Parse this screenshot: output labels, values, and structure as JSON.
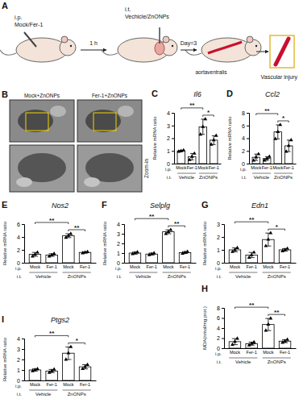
{
  "schematic": {
    "panel": "A",
    "texts": {
      "ip": "i.p.",
      "ip_agent": "Mock/Fer-1",
      "interval": "1 h",
      "it": "i.t.",
      "it_agent": "Vechicle/ZnONPs",
      "day": "Day=3",
      "vessel": "aortaventralis",
      "outcome": "Vascular injury"
    }
  },
  "images": {
    "panel": "B",
    "labels": [
      "Mock+ZnONPs",
      "Fer-1+ZnONPs"
    ],
    "zoom": "Zoom-in"
  },
  "chart_data": [
    {
      "type": "bar",
      "panel": "C",
      "title": "Il6",
      "y_label": "Relative mRNA ratio",
      "categories": [
        "Mock",
        "Fer-1",
        "Mock",
        "Fer-1"
      ],
      "groups": [
        "Vehicle",
        "ZnONPs"
      ],
      "row_labels": [
        "i.p.",
        "i.t."
      ],
      "values": [
        1.0,
        0.55,
        2.9,
        1.85
      ],
      "errors": [
        0.05,
        0.25,
        0.6,
        0.35
      ],
      "points": [
        [
          0.95,
          1.0,
          1.05
        ],
        [
          0.3,
          0.55,
          0.8
        ],
        [
          2.3,
          2.9,
          3.5
        ],
        [
          1.5,
          1.85,
          2.2
        ]
      ],
      "significance": [
        {
          "from": 0,
          "to": 2,
          "label": "**"
        },
        {
          "from": 2,
          "to": 3,
          "label": "*"
        }
      ],
      "ylim": [
        0,
        4
      ],
      "yticks": [
        0,
        1,
        2,
        3,
        4
      ],
      "color": "#ffffff",
      "marker": "triangle",
      "grid": false
    },
    {
      "type": "bar",
      "panel": "D",
      "title": "Ccl2",
      "y_label": "Relative mRNA ratio",
      "categories": [
        "Mock",
        "Fer-1",
        "Mock",
        "Fer-1"
      ],
      "groups": [
        "Vehicle",
        "ZnONPs"
      ],
      "row_labels": [
        "i.p.",
        "i.t."
      ],
      "values": [
        1.0,
        0.8,
        5.0,
        2.8
      ],
      "errors": [
        0.5,
        0.3,
        1.1,
        0.9
      ],
      "points": [
        [
          0.5,
          1.0,
          1.5
        ],
        [
          0.5,
          0.8,
          1.1
        ],
        [
          3.9,
          5.0,
          6.1
        ],
        [
          1.9,
          2.8,
          3.7
        ]
      ],
      "significance": [
        {
          "from": 0,
          "to": 2,
          "label": "**"
        },
        {
          "from": 2,
          "to": 3,
          "label": "*"
        }
      ],
      "ylim": [
        0,
        8
      ],
      "yticks": [
        0,
        2,
        4,
        6,
        8
      ],
      "color": "#ffffff",
      "marker": "triangle",
      "grid": false
    },
    {
      "type": "bar",
      "panel": "E",
      "title": "Nos2",
      "y_label": "Relative mRNA ratio",
      "categories": [
        "Mock",
        "Fer-1",
        "Mock",
        "Fer-1"
      ],
      "groups": [
        "Vehicle",
        "ZnONPs"
      ],
      "row_labels": [
        "i.p.",
        "i.t."
      ],
      "values": [
        1.3,
        1.2,
        4.2,
        1.6
      ],
      "errors": [
        0.3,
        0.2,
        0.3,
        0.1
      ],
      "points": [
        [
          1.0,
          1.3,
          1.6
        ],
        [
          1.0,
          1.2,
          1.4
        ],
        [
          3.9,
          4.2,
          4.5
        ],
        [
          1.5,
          1.6,
          1.7
        ]
      ],
      "significance": [
        {
          "from": 0,
          "to": 2,
          "label": "**"
        },
        {
          "from": 2,
          "to": 3,
          "label": "**"
        }
      ],
      "ylim": [
        0,
        6
      ],
      "yticks": [
        0,
        2,
        4,
        6
      ],
      "color": "#ffffff",
      "marker": "triangle",
      "grid": false
    },
    {
      "type": "bar",
      "panel": "F",
      "title": "Selplg",
      "y_label": "Relative mRNA ratio",
      "categories": [
        "Mock",
        "Fer-1",
        "Mock",
        "Fer-1"
      ],
      "groups": [
        "Vehicle",
        "ZnONPs"
      ],
      "row_labels": [
        "i.p.",
        "i.t."
      ],
      "values": [
        1.0,
        0.9,
        3.2,
        1.05
      ],
      "errors": [
        0.1,
        0.1,
        0.2,
        0.1
      ],
      "points": [
        [
          0.9,
          1.0,
          1.1
        ],
        [
          0.8,
          0.9,
          1.0
        ],
        [
          3.0,
          3.2,
          3.4
        ],
        [
          0.95,
          1.05,
          1.15
        ]
      ],
      "significance": [
        {
          "from": 0,
          "to": 2,
          "label": "**"
        },
        {
          "from": 2,
          "to": 3,
          "label": "**"
        }
      ],
      "ylim": [
        0,
        4
      ],
      "yticks": [
        0,
        1,
        2,
        3,
        4
      ],
      "color": "#ffffff",
      "marker": "triangle",
      "grid": false
    },
    {
      "type": "bar",
      "panel": "G",
      "title": "Edn1",
      "y_label": "Relative mRNA ratio",
      "categories": [
        "Mock",
        "Fer-1",
        "Mock",
        "Fer-1"
      ],
      "groups": [
        "Vehicle",
        "ZnONPs"
      ],
      "row_labels": [
        "i.p.",
        "i.t."
      ],
      "values": [
        1.0,
        0.6,
        1.8,
        1.0
      ],
      "errors": [
        0.15,
        0.2,
        0.5,
        0.1
      ],
      "points": [
        [
          0.85,
          1.0,
          1.15
        ],
        [
          0.4,
          0.6,
          0.8
        ],
        [
          1.3,
          1.8,
          2.3
        ],
        [
          0.9,
          1.0,
          1.1
        ]
      ],
      "significance": [
        {
          "from": 0,
          "to": 2,
          "label": "**"
        },
        {
          "from": 2,
          "to": 3,
          "label": "*"
        }
      ],
      "ylim": [
        0,
        3
      ],
      "yticks": [
        0,
        1,
        2,
        3
      ],
      "color": "#ffffff",
      "marker": "triangle",
      "grid": false
    },
    {
      "type": "bar",
      "panel": "H",
      "y_label": "MDA(nmol/mg prot.)",
      "categories": [
        "Mock",
        "Fer-1",
        "Mock",
        "Fer-1"
      ],
      "groups": [
        "Vehicle",
        "ZnONPs"
      ],
      "row_labels": [
        "i.p.",
        "i.t."
      ],
      "values": [
        1.3,
        0.9,
        4.7,
        1.4
      ],
      "errors": [
        0.6,
        0.3,
        1.2,
        0.3
      ],
      "points": [
        [
          0.7,
          1.3,
          1.9
        ],
        [
          0.6,
          0.9,
          1.2
        ],
        [
          3.5,
          4.7,
          5.9
        ],
        [
          1.1,
          1.4,
          1.7
        ]
      ],
      "significance": [
        {
          "from": 0,
          "to": 2,
          "label": "**"
        },
        {
          "from": 2,
          "to": 3,
          "label": "**"
        }
      ],
      "ylim": [
        0,
        8
      ],
      "yticks": [
        0,
        2,
        4,
        6,
        8
      ],
      "color": "#ffffff",
      "marker": "triangle",
      "grid": false
    },
    {
      "type": "bar",
      "panel": "I",
      "title": "Ptgs2",
      "y_label": "Relative mRNA ratio",
      "categories": [
        "Mock",
        "Fer-1",
        "Mock",
        "Fer-1"
      ],
      "groups": [
        "Vehicle",
        "ZnONPs"
      ],
      "row_labels": [
        "i.p.",
        "i.t."
      ],
      "values": [
        1.0,
        0.9,
        2.6,
        1.3
      ],
      "errors": [
        0.1,
        0.15,
        0.6,
        0.2
      ],
      "points": [
        [
          0.9,
          1.0,
          1.1
        ],
        [
          0.75,
          0.9,
          1.05
        ],
        [
          2.0,
          2.6,
          3.2
        ],
        [
          1.1,
          1.3,
          1.5
        ]
      ],
      "significance": [
        {
          "from": 0,
          "to": 2,
          "label": "**"
        },
        {
          "from": 2,
          "to": 3,
          "label": "*"
        }
      ],
      "ylim": [
        0,
        4
      ],
      "yticks": [
        0,
        1,
        2,
        3,
        4
      ],
      "color": "#ffffff",
      "marker": "triangle",
      "grid": false
    }
  ]
}
